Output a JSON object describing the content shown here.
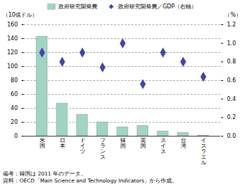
{
  "chart_data": {
    "type": "bar",
    "categories": [
      "米\n国",
      "日\n本",
      "ド\nイ\nツ",
      "フ\nラ\nン\nス",
      "韓\n国",
      "英\n国",
      "ス\nイ\nス",
      "台\n湾",
      "イ\nス\nラ\nエ\nル"
    ],
    "series": [
      {
        "name": "政府研究開発費",
        "type": "bar",
        "color": "#a0d4c4",
        "values": [
          143,
          47,
          31,
          20,
          13,
          15,
          7,
          5,
          1
        ]
      },
      {
        "name": "政府研究開発費／GDP（右軸）",
        "type": "scatter",
        "marker": "diamond",
        "color": "#4444aa",
        "axis": "y2",
        "values": [
          0.9,
          0.8,
          0.9,
          0.74,
          1.0,
          0.56,
          0.9,
          0.8,
          0.64
        ]
      }
    ],
    "ylabel": "（10億ドル）",
    "y2label": "（%）",
    "ylim": [
      0,
      160
    ],
    "yticks": [
      0,
      20,
      40,
      60,
      80,
      100,
      120,
      140,
      160
    ],
    "y2lim": [
      0,
      1.2
    ],
    "y2ticks": [
      {
        "value": 0,
        "label": "0.0"
      },
      0.2,
      0.4,
      0.6,
      0.8,
      {
        "value": 1.0,
        "label": "1.0"
      },
      1.2
    ],
    "grid": true,
    "legend": "top",
    "annotations": [
      "備考：韓国は 2011 年のデータ。",
      "資料：OECD「Main Science and Technology Indicators」から作成。"
    ]
  }
}
